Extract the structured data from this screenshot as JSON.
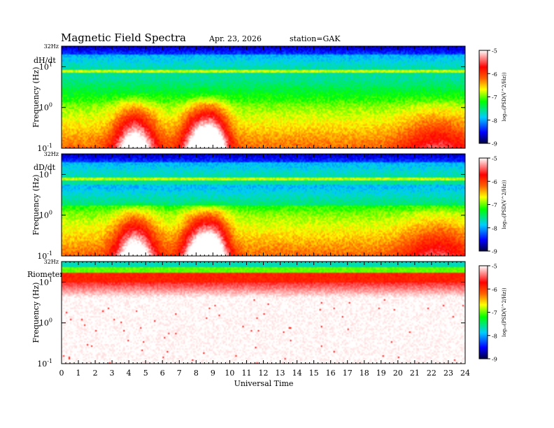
{
  "header": {
    "title": "Magnetic  Field  Spectra",
    "date": "Apr. 23, 2026",
    "station": "station=GAK"
  },
  "chart_data": {
    "type": "heatmap",
    "x": {
      "label": "Universal Time",
      "range": [
        0,
        24
      ],
      "ticks": [
        "0",
        "1",
        "2",
        "3",
        "4",
        "5",
        "6",
        "7",
        "8",
        "9",
        "10",
        "11",
        "12",
        "13",
        "14",
        "15",
        "16",
        "17",
        "18",
        "19",
        "20",
        "21",
        "22",
        "23",
        "24"
      ]
    },
    "y": {
      "label": "Frequency  (Hz)",
      "scale": "log",
      "range": [
        0.1,
        32
      ],
      "top_label": "32Hz",
      "ticks": [
        {
          "value": 10,
          "base": "10",
          "exp": "1"
        },
        {
          "value": 1,
          "base": "10",
          "exp": "0"
        },
        {
          "value": 0.1,
          "base": "10",
          "exp": "-1"
        }
      ]
    },
    "colorbar": {
      "label": "log₁₀(PSD(V^2/Hz))",
      "ticks": [
        "-5",
        "-6",
        "-7",
        "-8",
        "-9"
      ],
      "range": [
        -9,
        -5
      ],
      "colors": [
        "#000040",
        "#0000ff",
        "#00ccff",
        "#00ff00",
        "#ffff00",
        "#ff6000",
        "#ff0000",
        "#ffffff"
      ]
    },
    "panels": [
      {
        "name": "dH/dt",
        "type": "heatmap"
      },
      {
        "name": "dD/dt",
        "type": "heatmap"
      },
      {
        "name": "Riometer",
        "type": "heatmap"
      }
    ]
  }
}
